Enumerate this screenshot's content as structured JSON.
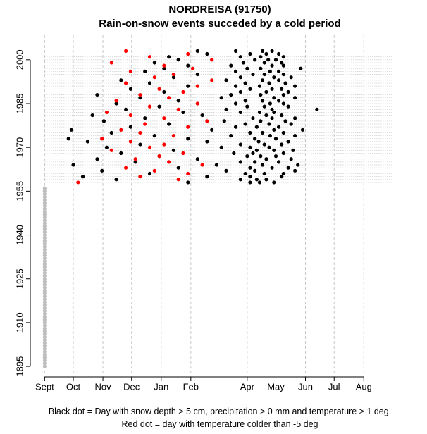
{
  "chart_data": {
    "type": "scatter",
    "title": "NORDREISA (91750)",
    "subtitle": "Rain-on-snow events succeded by a cold period",
    "notes": [
      "Black dot = Day with snow depth > 5 cm, precipitation > 0 mm and temperature > 1 deg.",
      "Red dot = day with temperature colder than -5 deg"
    ],
    "xlim": [
      -15,
      381
    ],
    "ylim": [
      1891.4,
      2008.4
    ],
    "xticks": [
      {
        "value": 0,
        "label": "Sept"
      },
      {
        "value": 30,
        "label": "Oct"
      },
      {
        "value": 61,
        "label": "Nov"
      },
      {
        "value": 91,
        "label": "Dec"
      },
      {
        "value": 122,
        "label": "Jan"
      },
      {
        "value": 153,
        "label": "Feb"
      },
      {
        "value": 212,
        "label": "Apr"
      },
      {
        "value": 242,
        "label": "May"
      },
      {
        "value": 273,
        "label": "Jun"
      },
      {
        "value": 303,
        "label": "Jul"
      },
      {
        "value": 334,
        "label": "Aug"
      }
    ],
    "yticks": [
      1895,
      1910,
      1925,
      1940,
      1955,
      1970,
      1985,
      2000
    ],
    "grid": true,
    "series": [
      {
        "color": "#bebebe",
        "row_lines": false,
        "x": [
          0,
          0,
          0,
          0,
          0,
          0,
          0,
          0,
          0,
          0,
          0,
          0,
          0,
          0,
          0,
          0,
          0,
          0,
          0,
          0,
          0,
          0,
          0,
          0,
          0,
          0,
          0,
          0,
          0,
          0,
          0,
          0,
          0,
          0,
          0,
          0,
          0,
          0,
          0,
          0,
          0,
          0,
          0,
          0,
          0,
          0,
          0,
          0,
          0,
          0,
          0,
          0,
          0,
          0,
          0,
          0,
          0,
          0,
          0,
          0,
          0,
          0
        ],
        "values": [
          1895,
          1896,
          1897,
          1898,
          1899,
          1900,
          1901,
          1902,
          1903,
          1904,
          1905,
          1906,
          1907,
          1908,
          1909,
          1910,
          1911,
          1912,
          1913,
          1914,
          1915,
          1916,
          1917,
          1918,
          1919,
          1920,
          1921,
          1922,
          1923,
          1924,
          1925,
          1926,
          1927,
          1928,
          1929,
          1930,
          1931,
          1932,
          1933,
          1934,
          1935,
          1936,
          1937,
          1938,
          1939,
          1940,
          1941,
          1942,
          1943,
          1944,
          1945,
          1946,
          1947,
          1948,
          1949,
          1950,
          1951,
          1952,
          1953,
          1954,
          1955,
          1956
        ]
      },
      {
        "color": "#000000",
        "row_lines": true,
        "x": [
          150,
          215,
          225,
          240,
          75,
          205,
          222,
          232,
          40,
          170,
          215,
          248,
          110,
          210,
          230,
          250,
          60,
          190,
          220,
          262,
          140,
          215,
          238,
          255,
          30,
          180,
          228,
          265,
          95,
          205,
          220,
          245,
          55,
          160,
          232,
          258,
          120,
          212,
          226,
          242,
          80,
          198,
          218,
          250,
          135,
          222,
          240,
          260,
          65,
          185,
          215,
          235,
          100,
          205,
          230,
          248,
          45,
          170,
          224,
          255,
          25,
          150,
          220,
          242,
          115,
          195,
          236,
          262,
          70,
          215,
          228,
          250,
          28,
          175,
          240,
          270,
          90,
          200,
          222,
          245,
          130,
          210,
          235,
          258,
          62,
          188,
          226,
          252,
          105,
          218,
          238,
          262,
          50,
          165,
          232,
          248,
          145,
          205,
          225,
          240,
          85,
          190,
          238,
          285,
          120,
          212,
          230,
          255,
          75,
          200,
          236,
          250,
          140,
          210,
          228,
          245,
          100,
          185,
          240,
          262,
          55,
          195,
          226,
          250,
          125,
          205,
          232,
          255,
          90,
          215,
          238,
          248,
          150,
          200,
          225,
          262,
          110,
          210,
          235,
          252,
          80,
          190,
          228,
          245,
          135,
          205,
          240,
          258,
          160,
          218,
          230,
          250,
          105,
          200,
          236,
          245,
          125,
          212,
          226,
          268,
          150,
          195,
          238,
          250,
          115,
          208,
          230,
          248,
          140,
          220,
          234,
          242,
          130,
          205,
          226,
          250,
          170,
          215,
          232,
          245,
          160,
          200,
          228,
          238
        ],
        "values": [
          1958,
          1958,
          1958,
          1958,
          1959,
          1959,
          1959,
          1959,
          1960,
          1960,
          1960,
          1960,
          1961,
          1961,
          1961,
          1961,
          1962,
          1962,
          1962,
          1962,
          1963,
          1963,
          1963,
          1963,
          1964,
          1964,
          1964,
          1964,
          1965,
          1965,
          1965,
          1965,
          1966,
          1966,
          1966,
          1966,
          1967,
          1967,
          1967,
          1967,
          1968,
          1968,
          1968,
          1968,
          1969,
          1969,
          1969,
          1969,
          1970,
          1970,
          1970,
          1970,
          1971,
          1971,
          1971,
          1971,
          1972,
          1972,
          1972,
          1972,
          1973,
          1973,
          1973,
          1973,
          1974,
          1974,
          1974,
          1974,
          1975,
          1975,
          1975,
          1975,
          1976,
          1976,
          1976,
          1976,
          1977,
          1977,
          1977,
          1977,
          1978,
          1978,
          1978,
          1978,
          1979,
          1979,
          1979,
          1979,
          1980,
          1980,
          1980,
          1980,
          1981,
          1981,
          1981,
          1981,
          1982,
          1982,
          1982,
          1982,
          1983,
          1983,
          1983,
          1983,
          1984,
          1984,
          1984,
          1984,
          1985,
          1985,
          1985,
          1985,
          1986,
          1986,
          1986,
          1986,
          1987,
          1987,
          1987,
          1987,
          1988,
          1988,
          1988,
          1988,
          1989,
          1989,
          1989,
          1989,
          1990,
          1990,
          1990,
          1990,
          1991,
          1991,
          1991,
          1991,
          1992,
          1992,
          1992,
          1992,
          1993,
          1993,
          1993,
          1993,
          1994,
          1994,
          1994,
          1994,
          1995,
          1995,
          1995,
          1995,
          1996,
          1996,
          1996,
          1996,
          1997,
          1997,
          1997,
          1997,
          1998,
          1998,
          1998,
          1998,
          1999,
          1999,
          1999,
          1999,
          2000,
          2000,
          2000,
          2000,
          2001,
          2001,
          2001,
          2001,
          2002,
          2002,
          2002,
          2002,
          2003,
          2003,
          2003,
          2003
        ]
      },
      {
        "color": "#ff0000",
        "row_lines": false,
        "x": [
          35,
          140,
          100,
          150,
          115,
          85,
          165,
          130,
          95,
          120,
          145,
          70,
          110,
          125,
          90,
          60,
          135,
          100,
          80,
          150,
          105,
          170,
          125,
          90,
          65,
          140,
          110,
          160,
          75,
          130,
          100,
          145,
          120,
          160,
          85,
          175,
          115,
          135,
          90,
          155,
          125,
          70,
          175,
          110,
          150,
          85
        ],
        "values": [
          1958,
          1959,
          1960,
          1961,
          1962,
          1963,
          1964,
          1965,
          1966,
          1967,
          1968,
          1969,
          1970,
          1971,
          1972,
          1973,
          1974,
          1975,
          1976,
          1977,
          1978,
          1979,
          1980,
          1981,
          1982,
          1983,
          1984,
          1985,
          1986,
          1987,
          1988,
          1989,
          1990,
          1991,
          1992,
          1993,
          1994,
          1995,
          1996,
          1997,
          1998,
          1999,
          2000,
          2001,
          2002,
          2003
        ]
      }
    ]
  }
}
